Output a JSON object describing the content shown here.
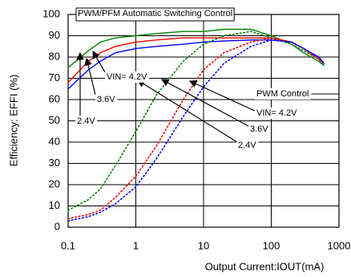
{
  "chart_data": {
    "type": "line",
    "x_label": "Output Current:IOUT(mA)",
    "y_label": "Efficiency: EFFI (%)",
    "x": [
      0.1,
      0.2,
      0.3,
      0.5,
      1,
      2,
      5,
      10,
      20,
      50,
      100,
      200,
      300,
      500,
      600
    ],
    "series": [
      {
        "color": "#008000",
        "style": "solid",
        "values": [
          75,
          83,
          87,
          89,
          90,
          91,
          92,
          92,
          93,
          93,
          90,
          86,
          82,
          78,
          76
        ]
      },
      {
        "color": "#ff0000",
        "style": "solid",
        "values": [
          68,
          78,
          82,
          85,
          87,
          88,
          89,
          89,
          89,
          89,
          89,
          87,
          84,
          79,
          77
        ]
      },
      {
        "color": "#0000ff",
        "style": "solid",
        "values": [
          65,
          74,
          78,
          82,
          84,
          85,
          86,
          87,
          87.5,
          88,
          88,
          87,
          84,
          80,
          77
        ]
      },
      {
        "color": "#008000",
        "style": "dotted",
        "values": [
          8,
          13,
          18,
          29,
          45,
          62,
          78,
          86,
          90,
          92,
          89,
          86,
          83,
          79,
          76
        ]
      },
      {
        "color": "#ff0000",
        "style": "dotted",
        "values": [
          4,
          6,
          8,
          14,
          24,
          38,
          60,
          74,
          82,
          87,
          89,
          87,
          84,
          79,
          77
        ]
      },
      {
        "color": "#0000ff",
        "style": "dotted",
        "values": [
          3,
          5,
          7,
          11,
          19,
          32,
          52,
          66,
          77,
          85,
          88,
          87,
          84,
          80,
          77
        ]
      }
    ],
    "annotations": [
      "PWM/PFM Automatic Switching Control",
      "VIN= 4.2V",
      "3.6V",
      "2.4V",
      "PWM Control",
      "VIN= 4.2V",
      "3.6V",
      "2.4V"
    ],
    "xscale": "log",
    "xlim": [
      0.1,
      1000
    ],
    "xticks": [
      0.1,
      1,
      10,
      100,
      1000
    ],
    "ylim": [
      0,
      100
    ],
    "yticks": [
      0,
      10,
      20,
      30,
      40,
      50,
      60,
      70,
      80,
      90,
      100
    ],
    "grid": true
  }
}
